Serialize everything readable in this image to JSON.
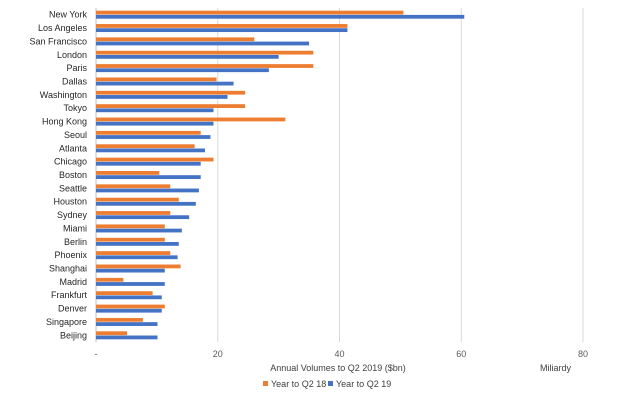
{
  "chart_data": {
    "type": "bar",
    "orientation": "horizontal",
    "categories": [
      "New York",
      "Los Angeles",
      "San Francisco",
      "London",
      "Paris",
      "Dallas",
      "Washington",
      "Tokyo",
      "Hong Kong",
      "Seoul",
      "Atlanta",
      "Chicago",
      "Boston",
      "Seattle",
      "Houston",
      "Sydney",
      "Miami",
      "Berlin",
      "Phoenix",
      "Shanghai",
      "Madrid",
      "Frankfurt",
      "Denver",
      "Singapore",
      "Beijing"
    ],
    "series": [
      {
        "name": "Year to Q2 18",
        "color": "#ED7D31",
        "values": [
          50.5,
          41.3,
          26.0,
          35.7,
          35.7,
          19.8,
          24.5,
          24.5,
          31.1,
          17.2,
          16.2,
          19.3,
          10.4,
          12.2,
          13.6,
          12.2,
          11.3,
          11.3,
          12.2,
          13.9,
          4.5,
          9.3,
          11.3,
          7.7,
          5.1
        ]
      },
      {
        "name": "Year to Q2 19",
        "color": "#4472C4",
        "values": [
          60.5,
          41.3,
          35.0,
          30.0,
          28.4,
          22.6,
          21.6,
          19.3,
          19.3,
          18.8,
          17.9,
          17.2,
          17.2,
          16.9,
          16.4,
          15.3,
          14.1,
          13.6,
          13.4,
          11.3,
          11.3,
          10.8,
          10.8,
          10.1,
          10.1
        ]
      }
    ],
    "xlabel": "Annual Volumes to Q2 2019 ($bn)",
    "unit_label": "Miliardy",
    "xlim": [
      0,
      80
    ],
    "x_ticks": [
      "-",
      "20",
      "40",
      "60",
      "80"
    ],
    "grid": true,
    "legend_position": "bottom"
  }
}
